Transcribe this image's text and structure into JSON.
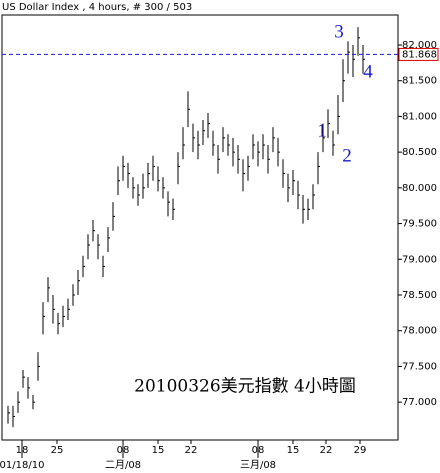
{
  "chart_data": {
    "type": "ohlc",
    "title": "US Dollar Index , 4 hours, # 300 / 503",
    "color": "#000000",
    "x": [
      0,
      1,
      2,
      3,
      4,
      5,
      6,
      7,
      8,
      9,
      10,
      11,
      12,
      13,
      14,
      15,
      16,
      17,
      18,
      19,
      20,
      21,
      22,
      23,
      24,
      25,
      26,
      27,
      28,
      29,
      30,
      31,
      32,
      33,
      34,
      35,
      36,
      37,
      38,
      39,
      40,
      41,
      42,
      43,
      44,
      45,
      46,
      47,
      48,
      49,
      50,
      51,
      52,
      53,
      54,
      55,
      56,
      57,
      58,
      59,
      60,
      61,
      62,
      63,
      64,
      65,
      66,
      67,
      68,
      69,
      70,
      71
    ],
    "high": [
      76.95,
      76.95,
      77.15,
      77.45,
      77.35,
      77.1,
      77.7,
      78.4,
      78.75,
      78.5,
      78.25,
      78.35,
      78.45,
      78.65,
      78.85,
      79.05,
      79.35,
      79.55,
      79.35,
      79.05,
      79.45,
      79.8,
      80.3,
      80.45,
      80.35,
      80.15,
      80.05,
      80.2,
      80.35,
      80.45,
      80.3,
      80.15,
      79.95,
      79.85,
      80.5,
      80.85,
      81.35,
      80.9,
      80.8,
      80.95,
      81.05,
      80.8,
      80.6,
      80.85,
      80.75,
      80.7,
      80.6,
      80.4,
      80.45,
      80.75,
      80.65,
      80.75,
      80.6,
      80.85,
      80.7,
      80.4,
      80.2,
      80.25,
      80.1,
      79.9,
      79.85,
      80.05,
      80.5,
      80.9,
      81.1,
      80.8,
      81.3,
      81.8,
      82.05,
      82.0,
      82.25,
      82.0
    ],
    "low": [
      76.7,
      76.65,
      76.85,
      77.2,
      77.05,
      76.9,
      77.3,
      77.95,
      78.4,
      78.1,
      77.95,
      78.05,
      78.15,
      78.35,
      78.5,
      78.75,
      79.0,
      79.25,
      79.0,
      78.75,
      79.1,
      79.4,
      79.9,
      80.1,
      80.0,
      79.85,
      79.75,
      79.85,
      80.0,
      80.1,
      79.95,
      79.85,
      79.6,
      79.55,
      80.05,
      80.4,
      80.85,
      80.5,
      80.4,
      80.6,
      80.7,
      80.45,
      80.2,
      80.5,
      80.45,
      80.3,
      80.2,
      79.95,
      80.1,
      80.4,
      80.3,
      80.4,
      80.2,
      80.5,
      80.3,
      80.0,
      79.8,
      79.9,
      79.7,
      79.5,
      79.55,
      79.7,
      80.05,
      80.5,
      80.7,
      80.45,
      80.75,
      81.2,
      81.6,
      81.55,
      81.85,
      81.6
    ],
    "close": [
      76.85,
      76.8,
      77.0,
      77.35,
      77.2,
      77.0,
      77.5,
      78.2,
      78.6,
      78.3,
      78.1,
      78.2,
      78.3,
      78.5,
      78.7,
      78.9,
      79.2,
      79.4,
      79.2,
      78.9,
      79.3,
      79.6,
      80.1,
      80.3,
      80.2,
      80.0,
      79.9,
      80.0,
      80.2,
      80.3,
      80.1,
      80.0,
      79.8,
      79.7,
      80.3,
      80.6,
      81.1,
      80.7,
      80.6,
      80.8,
      80.9,
      80.6,
      80.4,
      80.7,
      80.6,
      80.5,
      80.4,
      80.2,
      80.3,
      80.6,
      80.5,
      80.6,
      80.4,
      80.7,
      80.5,
      80.2,
      80.0,
      80.1,
      79.9,
      79.7,
      79.7,
      79.9,
      80.3,
      80.7,
      80.9,
      80.6,
      81.0,
      81.5,
      81.9,
      81.8,
      82.1,
      81.8
    ],
    "xlim": [
      -1.2,
      78
    ],
    "xticks": [
      {
        "value": 2.8,
        "label": "18"
      },
      {
        "value": 9.8,
        "label": "25"
      },
      {
        "value": 23,
        "label": "08"
      },
      {
        "value": 30,
        "label": "15"
      },
      {
        "value": 36.6,
        "label": "22"
      },
      {
        "value": 50,
        "label": "08"
      },
      {
        "value": 57,
        "label": "15"
      },
      {
        "value": 63.6,
        "label": "22"
      },
      {
        "value": 70.4,
        "label": "29"
      }
    ],
    "month_ticks": [
      {
        "value": 2.8,
        "label": "01/18/10"
      },
      {
        "value": 23,
        "label": "二月/08"
      },
      {
        "value": 50,
        "label": "三月/08"
      }
    ],
    "ylim": [
      76.47,
      82.42
    ],
    "yticks": [
      {
        "value": 77,
        "label": "77.000"
      },
      {
        "value": 77.5,
        "label": "77.500"
      },
      {
        "value": 78,
        "label": "78.000"
      },
      {
        "value": 78.5,
        "label": "78.500"
      },
      {
        "value": 79,
        "label": "79.000"
      },
      {
        "value": 79.5,
        "label": "79.500"
      },
      {
        "value": 80,
        "label": "80.000"
      },
      {
        "value": 80.5,
        "label": "80.500"
      },
      {
        "value": 81,
        "label": "81.000"
      },
      {
        "value": 81.5,
        "label": "81.500"
      },
      {
        "value": 82,
        "label": "82.000"
      }
    ],
    "last_price": 81.868,
    "wave_labels": [
      "1",
      "2",
      "3",
      "4"
    ],
    "caption": "20100326美元指數 4小時圖"
  }
}
